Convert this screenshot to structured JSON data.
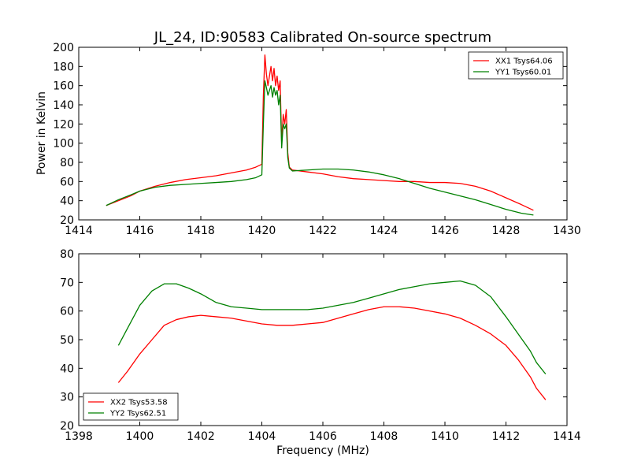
{
  "chart_data": [
    {
      "type": "line",
      "title": "JL_24, ID:90583 Calibrated On-source spectrum",
      "xlabel": "",
      "ylabel": "Power in Kelvin",
      "xlim": [
        1414,
        1430
      ],
      "ylim": [
        20,
        200
      ],
      "xticks": [
        "1414",
        "1416",
        "1418",
        "1420",
        "1422",
        "1424",
        "1426",
        "1428",
        "1430"
      ],
      "yticks": [
        "20",
        "40",
        "60",
        "80",
        "100",
        "120",
        "140",
        "160",
        "180",
        "200"
      ],
      "legend_position": "top-right",
      "series": [
        {
          "name": "XX1 Tsys64.06",
          "color": "#ff0000",
          "x": [
            1414.9,
            1415.3,
            1415.7,
            1416.0,
            1416.5,
            1417.0,
            1417.5,
            1418.0,
            1418.5,
            1419.0,
            1419.5,
            1419.8,
            1420.0,
            1420.05,
            1420.1,
            1420.15,
            1420.2,
            1420.3,
            1420.35,
            1420.4,
            1420.45,
            1420.5,
            1420.55,
            1420.6,
            1420.65,
            1420.7,
            1420.75,
            1420.8,
            1420.85,
            1420.9,
            1421.0,
            1421.5,
            1422.0,
            1422.5,
            1423.0,
            1423.5,
            1424.0,
            1424.5,
            1425.0,
            1425.5,
            1426.0,
            1426.5,
            1427.0,
            1427.5,
            1428.0,
            1428.5,
            1428.9
          ],
          "values": [
            35,
            40,
            45,
            50,
            55,
            59,
            62,
            64,
            66,
            69,
            72,
            75,
            78,
            150,
            192,
            172,
            160,
            180,
            165,
            178,
            160,
            170,
            155,
            165,
            100,
            130,
            120,
            135,
            90,
            75,
            72,
            70,
            68,
            65,
            63,
            62,
            61,
            60,
            60,
            59,
            59,
            58,
            55,
            50,
            43,
            36,
            30
          ]
        },
        {
          "name": "YY1 Tsys60.01",
          "color": "#008000",
          "x": [
            1414.9,
            1415.3,
            1415.7,
            1416.0,
            1416.5,
            1417.0,
            1417.5,
            1418.0,
            1418.5,
            1419.0,
            1419.5,
            1419.8,
            1420.0,
            1420.05,
            1420.1,
            1420.15,
            1420.2,
            1420.3,
            1420.35,
            1420.4,
            1420.45,
            1420.5,
            1420.55,
            1420.6,
            1420.65,
            1420.7,
            1420.75,
            1420.8,
            1420.85,
            1420.9,
            1421.0,
            1421.5,
            1422.0,
            1422.5,
            1423.0,
            1423.5,
            1424.0,
            1424.5,
            1425.0,
            1425.5,
            1426.0,
            1426.5,
            1427.0,
            1427.5,
            1428.0,
            1428.5,
            1428.9
          ],
          "values": [
            35,
            41,
            46,
            50,
            54,
            56,
            57,
            58,
            59,
            60,
            62,
            64,
            67,
            120,
            165,
            158,
            150,
            160,
            148,
            158,
            150,
            155,
            140,
            150,
            95,
            120,
            115,
            120,
            85,
            74,
            71,
            72,
            73,
            73,
            72,
            70,
            67,
            63,
            58,
            53,
            49,
            45,
            41,
            36,
            31,
            27,
            25
          ]
        }
      ]
    },
    {
      "type": "line",
      "title": "",
      "xlabel": "Frequency (MHz)",
      "ylabel": "",
      "xlim": [
        1398,
        1414
      ],
      "ylim": [
        20,
        80
      ],
      "xticks": [
        "1398",
        "1400",
        "1402",
        "1404",
        "1406",
        "1408",
        "1410",
        "1412",
        "1414"
      ],
      "yticks": [
        "20",
        "30",
        "40",
        "50",
        "60",
        "70",
        "80"
      ],
      "legend_position": "bottom-left",
      "series": [
        {
          "name": "XX2 Tsys53.58",
          "color": "#ff0000",
          "x": [
            1399.3,
            1399.6,
            1400.0,
            1400.4,
            1400.8,
            1401.2,
            1401.6,
            1402.0,
            1402.5,
            1403.0,
            1403.5,
            1404.0,
            1404.5,
            1405.0,
            1405.5,
            1406.0,
            1406.5,
            1407.0,
            1407.5,
            1408.0,
            1408.5,
            1409.0,
            1409.5,
            1410.0,
            1410.5,
            1411.0,
            1411.5,
            1412.0,
            1412.4,
            1412.8,
            1413.0,
            1413.3
          ],
          "values": [
            35,
            39,
            45,
            50,
            55,
            57,
            58,
            58.5,
            58,
            57.5,
            56.5,
            55.5,
            55,
            55,
            55.5,
            56,
            57.5,
            59,
            60.5,
            61.5,
            61.5,
            61,
            60,
            59,
            57.5,
            55,
            52,
            48,
            43,
            37,
            33,
            29
          ]
        },
        {
          "name": "YY2 Tsys62.51",
          "color": "#008000",
          "x": [
            1399.3,
            1399.6,
            1400.0,
            1400.4,
            1400.8,
            1401.2,
            1401.6,
            1402.0,
            1402.5,
            1403.0,
            1403.5,
            1404.0,
            1404.5,
            1405.0,
            1405.5,
            1406.0,
            1406.5,
            1407.0,
            1407.5,
            1408.0,
            1408.5,
            1409.0,
            1409.5,
            1410.0,
            1410.5,
            1411.0,
            1411.5,
            1412.0,
            1412.4,
            1412.8,
            1413.0,
            1413.3
          ],
          "values": [
            48,
            54,
            62,
            67,
            69.5,
            69.5,
            68,
            66,
            63,
            61.5,
            61,
            60.5,
            60.5,
            60.5,
            60.5,
            61,
            62,
            63,
            64.5,
            66,
            67.5,
            68.5,
            69.5,
            70,
            70.5,
            69,
            65,
            58,
            52,
            46,
            42,
            38
          ]
        }
      ]
    }
  ]
}
